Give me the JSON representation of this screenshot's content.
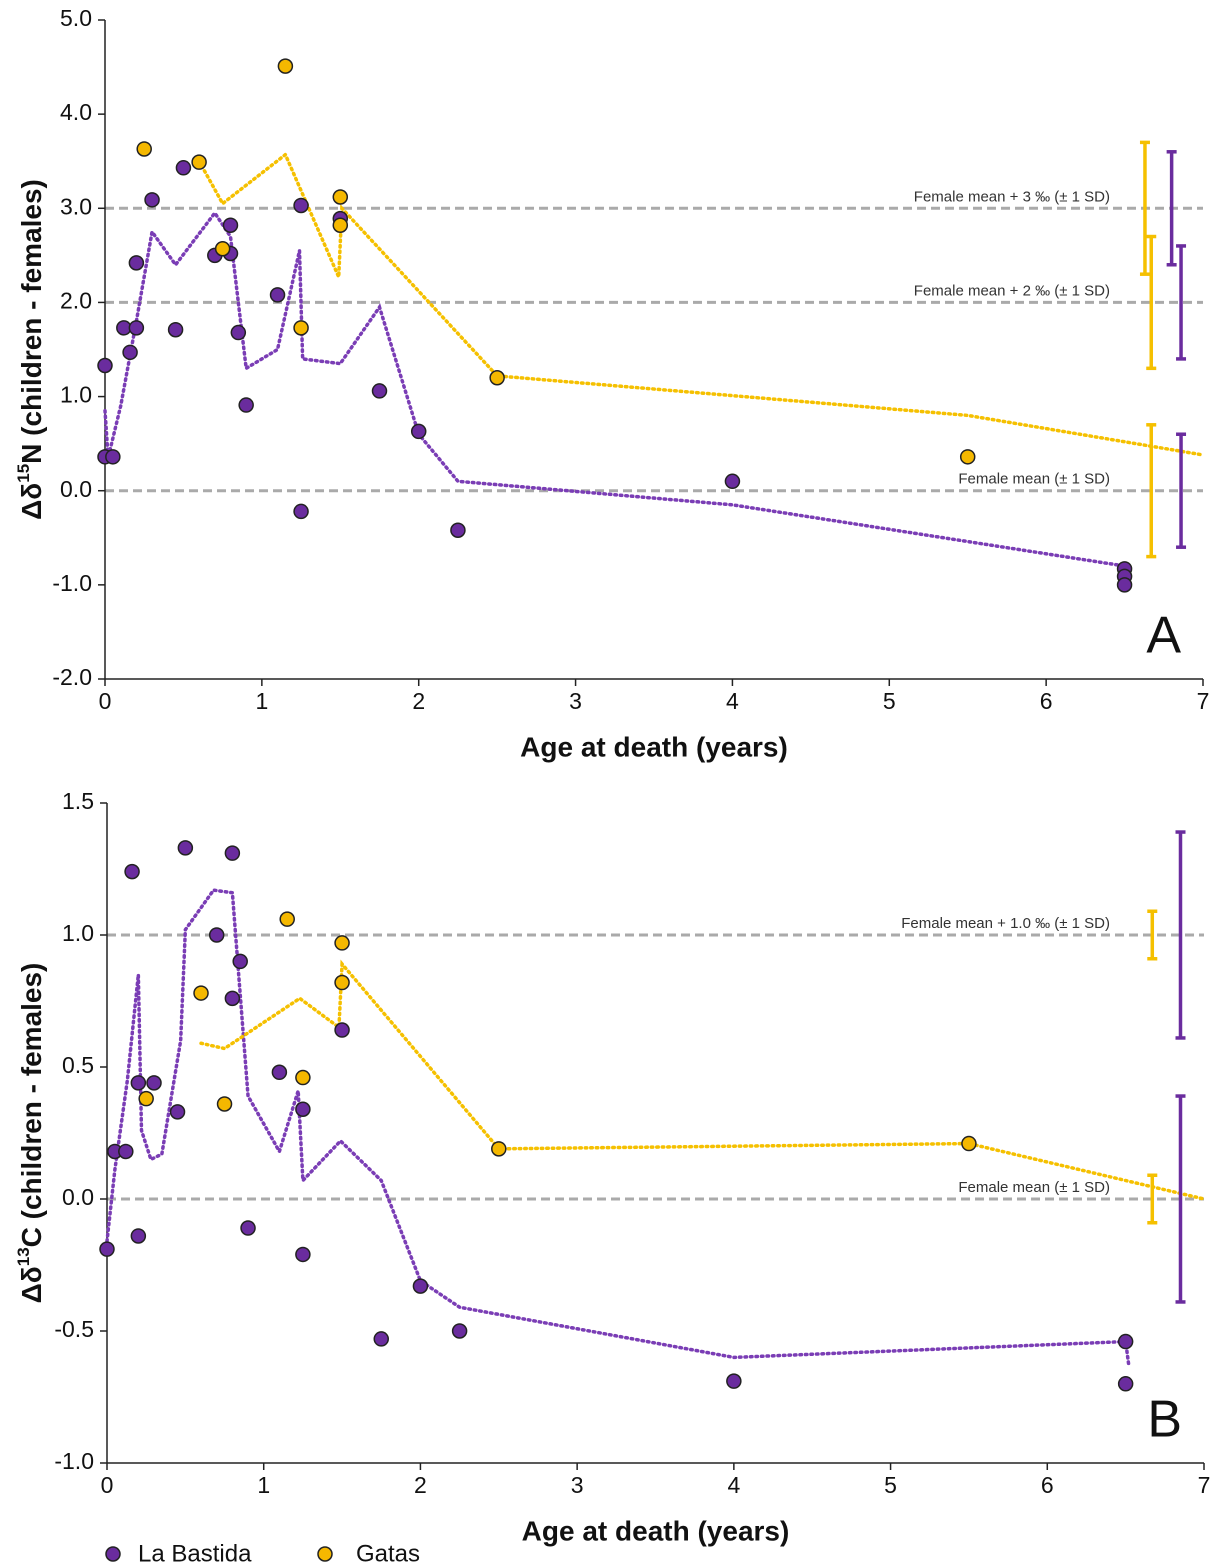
{
  "chart_data": [
    {
      "type": "scatter",
      "panel_label": "A",
      "x_label": "Age at death (years)",
      "y_label": {
        "prefix": "Δδ",
        "sup": "15",
        "suffix": "N (children - females)"
      },
      "xlim": [
        0,
        7
      ],
      "ylim": [
        -2,
        5
      ],
      "xticks": [
        0,
        1,
        2,
        3,
        4,
        5,
        6,
        7
      ],
      "yticks": [
        {
          "value": -2,
          "label": "-2.0"
        },
        {
          "value": -1,
          "label": "-1.0"
        },
        {
          "value": 0,
          "label": "0.0"
        },
        {
          "value": 1,
          "label": "1.0"
        },
        {
          "value": 2,
          "label": "2.0"
        },
        {
          "value": 3,
          "label": "3.0"
        },
        {
          "value": 4,
          "label": "4.0"
        },
        {
          "value": 5,
          "label": "5.0"
        }
      ],
      "series": [
        {
          "color": "#6a2c9e",
          "x": [
            0,
            0,
            0.05,
            0.12,
            0.2,
            0.16,
            0.2,
            0.3,
            0.45,
            0.5,
            0.7,
            0.8,
            0.8,
            0.85,
            0.9,
            1.1,
            1.25,
            1.25,
            1.5,
            1.75,
            2.0,
            2.25,
            4.0,
            6.5,
            6.5,
            6.5
          ],
          "values": [
            1.33,
            0.36,
            0.36,
            1.73,
            1.73,
            1.47,
            2.42,
            3.09,
            1.71,
            3.43,
            2.5,
            2.82,
            2.52,
            1.68,
            0.91,
            2.08,
            3.03,
            -0.22,
            2.89,
            1.06,
            0.63,
            -0.42,
            0.1,
            -0.83,
            -0.91,
            -1.0
          ]
        },
        {
          "color": "#f5b800",
          "x": [
            0.25,
            0.6,
            0.75,
            1.15,
            1.25,
            1.5,
            1.5,
            2.5,
            5.5
          ],
          "values": [
            3.63,
            3.49,
            2.57,
            4.51,
            1.73,
            3.12,
            2.82,
            1.2,
            0.36
          ]
        }
      ],
      "trend_lines": [
        {
          "color": "#7a3db5",
          "x": [
            0,
            0.02,
            0.1,
            0.2,
            0.3,
            0.45,
            0.7,
            0.8,
            0.9,
            1.1,
            1.24,
            1.26,
            1.5,
            1.75,
            2.0,
            2.25,
            4.0,
            6.5
          ],
          "values": [
            0.85,
            0.35,
            0.9,
            1.8,
            2.75,
            2.4,
            2.95,
            2.7,
            1.3,
            1.5,
            2.55,
            1.4,
            1.35,
            1.95,
            0.6,
            0.1,
            -0.15,
            -0.8
          ]
        },
        {
          "color": "#f5c000",
          "x": [
            0.6,
            0.75,
            1.15,
            1.49,
            1.51,
            2.5,
            5.5,
            7
          ],
          "values": [
            3.5,
            3.05,
            3.57,
            2.27,
            3.0,
            1.22,
            0.8,
            0.38
          ]
        }
      ],
      "reference_lines": [
        {
          "value": 3,
          "label": "Female mean + 3 ‰ (± 1 SD)"
        },
        {
          "value": 2,
          "label": "Female mean + 2 ‰ (± 1 SD)"
        },
        {
          "value": 0,
          "label": "Female mean (± 1 SD)"
        }
      ],
      "error_bars": [
        {
          "color": "#f5c000",
          "x": 6.63,
          "value": 3,
          "error": 0.7
        },
        {
          "color": "#f5c000",
          "x": 6.67,
          "value": 2,
          "error": 0.7
        },
        {
          "color": "#f5c000",
          "x": 6.67,
          "value": 0,
          "error": 0.7
        },
        {
          "color": "#6a2c9e",
          "x": 6.8,
          "value": 3,
          "error": 0.6
        },
        {
          "color": "#6a2c9e",
          "x": 6.86,
          "value": 2,
          "error": 0.6
        },
        {
          "color": "#6a2c9e",
          "x": 6.86,
          "value": 0,
          "error": 0.6
        }
      ]
    },
    {
      "type": "scatter",
      "panel_label": "B",
      "x_label": "Age at death (years)",
      "y_label": {
        "prefix": "Δδ",
        "sup": "13",
        "suffix": "C (children - females)"
      },
      "xlim": [
        0,
        7
      ],
      "ylim": [
        -1,
        1.5
      ],
      "xticks": [
        0,
        1,
        2,
        3,
        4,
        5,
        6,
        7
      ],
      "yticks": [
        {
          "value": -1,
          "label": "-1.0"
        },
        {
          "value": -0.5,
          "label": "-0.5"
        },
        {
          "value": 0,
          "label": "0.0"
        },
        {
          "value": 0.5,
          "label": "0.5"
        },
        {
          "value": 1,
          "label": "1.0"
        },
        {
          "value": 1.5,
          "label": "1.5"
        }
      ],
      "series": [
        {
          "name": "La Bastida",
          "color": "#6a2c9e",
          "x": [
            0,
            0.05,
            0.12,
            0.16,
            0.2,
            0.2,
            0.3,
            0.45,
            0.5,
            0.7,
            0.8,
            0.8,
            0.85,
            0.9,
            1.1,
            1.25,
            1.25,
            1.5,
            1.75,
            2.0,
            2.25,
            4.0,
            6.5,
            6.5
          ],
          "values": [
            -0.19,
            0.18,
            0.18,
            1.24,
            -0.14,
            0.44,
            0.44,
            0.33,
            1.33,
            1.0,
            1.31,
            0.76,
            0.9,
            -0.11,
            0.48,
            0.34,
            -0.21,
            0.64,
            -0.53,
            -0.33,
            -0.5,
            -0.69,
            -0.54,
            -0.7
          ]
        },
        {
          "name": "Gatas",
          "color": "#f5b800",
          "x": [
            0.25,
            0.6,
            0.75,
            1.15,
            1.25,
            1.5,
            1.5,
            2.5,
            5.5
          ],
          "values": [
            0.38,
            0.78,
            0.36,
            1.06,
            0.46,
            0.97,
            0.82,
            0.19,
            0.21
          ]
        }
      ],
      "trend_lines": [
        {
          "color": "#7a3db5",
          "x": [
            0,
            0.05,
            0.13,
            0.2,
            0.22,
            0.28,
            0.35,
            0.47,
            0.5,
            0.68,
            0.8,
            0.9,
            1.1,
            1.22,
            1.25,
            1.49,
            1.75,
            2.0,
            2.25,
            4.0,
            6.5,
            6.52
          ],
          "values": [
            -0.16,
            0.11,
            0.45,
            0.85,
            0.26,
            0.15,
            0.17,
            0.6,
            1.02,
            1.17,
            1.16,
            0.39,
            0.18,
            0.41,
            0.07,
            0.22,
            0.07,
            -0.31,
            -0.41,
            -0.6,
            -0.54,
            -0.63
          ]
        },
        {
          "color": "#f5c000",
          "x": [
            0.6,
            0.75,
            1.23,
            1.48,
            1.5,
            2.5,
            5.5,
            7
          ],
          "values": [
            0.59,
            0.57,
            0.76,
            0.65,
            0.89,
            0.19,
            0.21,
            0.0
          ]
        }
      ],
      "reference_lines": [
        {
          "value": 1,
          "label": "Female mean + 1.0 ‰ (± 1 SD)"
        },
        {
          "value": 0,
          "label": "Female mean (± 1 SD)"
        }
      ],
      "error_bars": [
        {
          "color": "#f5c000",
          "x": 6.67,
          "value": 1,
          "error": 0.09
        },
        {
          "color": "#f5c000",
          "x": 6.67,
          "value": 0,
          "error": 0.09
        },
        {
          "color": "#6a2c9e",
          "x": 6.85,
          "value": 1,
          "error": 0.39
        },
        {
          "color": "#6a2c9e",
          "x": 6.85,
          "value": 0,
          "error": 0.39
        }
      ]
    }
  ]
}
